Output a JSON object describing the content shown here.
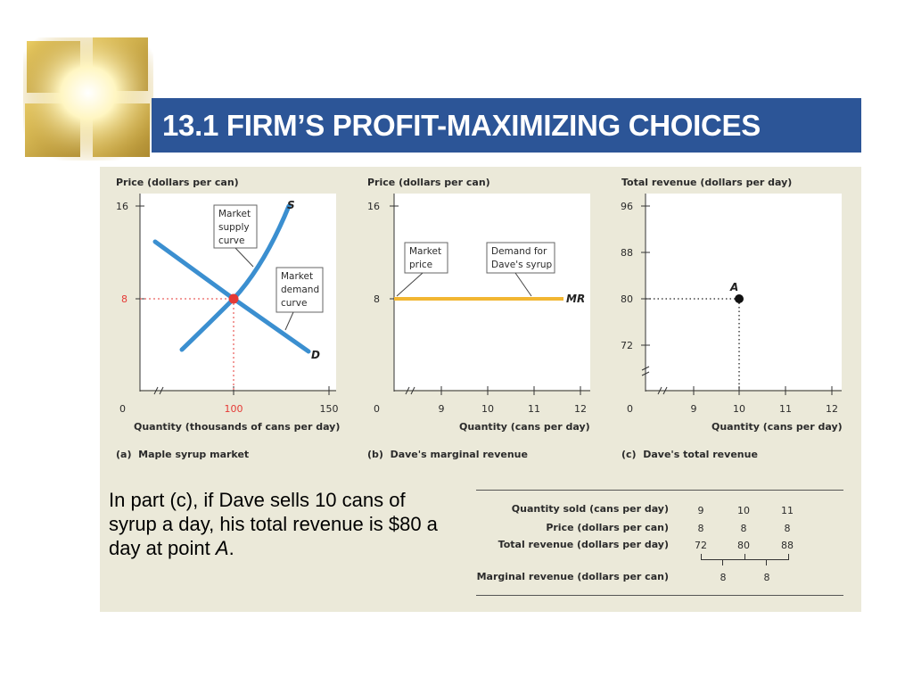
{
  "slide": {
    "title": "13.1 FIRM’S PROFIT-MAXIMIZING CHOICES",
    "caption_text": "In part (c), if Dave sells 10 cans of syrup a day, his total revenue is $80 a day at point ",
    "caption_italic": "A",
    "caption_end": "."
  },
  "colors": {
    "title_bar": "#2c5597",
    "panel_bg": "#ebe9d9",
    "curve_blue": "#3b8fd0",
    "mr_gold": "#f2b632",
    "equilibrium_red": "#e53935"
  },
  "chart_data": [
    {
      "type": "line",
      "ylabel": "Price (dollars per can)",
      "xlabel": "Quantity (thousands of cans per day)",
      "caption": "(a)  Maple syrup market",
      "y_ticks": [
        "16",
        "8"
      ],
      "x_ticks": [
        "0",
        "100",
        "150"
      ],
      "xlim": [
        0,
        150
      ],
      "ylim": [
        0,
        16
      ],
      "series": [
        {
          "name": "S",
          "x": [
            65,
            100,
            130
          ],
          "y": [
            4,
            8,
            15.8
          ]
        },
        {
          "name": "D",
          "x": [
            25,
            100,
            140
          ],
          "y": [
            12.5,
            8,
            3.5
          ]
        }
      ],
      "equilibrium": {
        "x": 100,
        "y": 8
      },
      "annotations": {
        "supply": [
          "Market",
          "supply",
          "curve"
        ],
        "demand": [
          "Market",
          "demand",
          "curve"
        ],
        "s_label": "S",
        "d_label": "D"
      }
    },
    {
      "type": "line",
      "ylabel": "Price (dollars per can)",
      "xlabel": "Quantity (cans per day)",
      "caption": "(b)  Dave's marginal revenue",
      "y_ticks": [
        "16",
        "8"
      ],
      "x_ticks": [
        "0",
        "9",
        "10",
        "11",
        "12"
      ],
      "xlim": [
        0,
        12
      ],
      "ylim": [
        0,
        16
      ],
      "series": [
        {
          "name": "MR",
          "x": [
            0,
            12
          ],
          "y": [
            8,
            8
          ]
        }
      ],
      "annotations": {
        "market_price": [
          "Market",
          "price"
        ],
        "demand_for": [
          "Demand for",
          "Dave's syrup"
        ],
        "mr_label": "MR"
      }
    },
    {
      "type": "scatter",
      "ylabel": "Total revenue (dollars per day)",
      "xlabel": "Quantity (cans per day)",
      "caption": "(c)  Dave's total revenue",
      "y_ticks": [
        "96",
        "88",
        "80",
        "72"
      ],
      "x_ticks": [
        "0",
        "9",
        "10",
        "11",
        "12"
      ],
      "xlim": [
        8,
        12
      ],
      "ylim": [
        68,
        96
      ],
      "series": [
        {
          "name": "A",
          "x": [
            10
          ],
          "y": [
            80
          ]
        }
      ]
    }
  ],
  "table": {
    "rows": [
      {
        "label": "Quantity sold (cans per day)",
        "values": [
          "9",
          "10",
          "11"
        ]
      },
      {
        "label": "Price (dollars per can)",
        "values": [
          "8",
          "8",
          "8"
        ]
      },
      {
        "label": "Total revenue (dollars per day)",
        "values": [
          "72",
          "80",
          "88"
        ]
      },
      {
        "label": "Marginal revenue (dollars per can)",
        "values": [
          "8",
          "8"
        ]
      }
    ]
  }
}
